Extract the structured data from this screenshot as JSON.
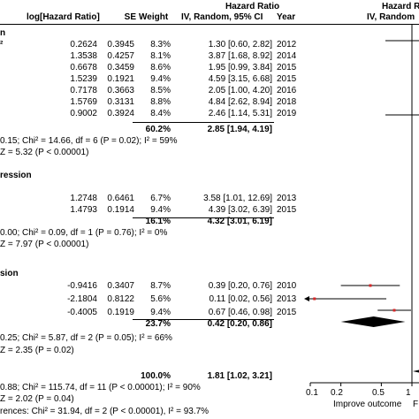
{
  "header": {
    "hr_top": "Hazard Ratio",
    "cols": [
      "log[Hazard Ratio]",
      "SE",
      "Weight",
      "IV, Random, 95% CI",
      "Year"
    ],
    "plot_top": "Hazard R",
    "plot_sub": "IV, Random"
  },
  "groups": [
    {
      "title": "n",
      "title2": "²",
      "rows": [
        {
          "log": "0.2624",
          "se": "0.3945",
          "w": "8.3%",
          "ci": "1.30 [0.60, 2.82]",
          "year": "2012"
        },
        {
          "log": "1.3538",
          "se": "0.4257",
          "w": "8.1%",
          "ci": "3.87 [1.68, 8.92]",
          "year": "2014"
        },
        {
          "log": "0.6678",
          "se": "0.3459",
          "w": "8.6%",
          "ci": "1.95 [0.99, 3.84]",
          "year": "2015"
        },
        {
          "log": "1.5239",
          "se": "0.1921",
          "w": "9.4%",
          "ci": "4.59 [3.15, 6.68]",
          "year": "2015"
        },
        {
          "log": "0.7178",
          "se": "0.3663",
          "w": "8.5%",
          "ci": "2.05 [1.00, 4.20]",
          "year": "2016"
        },
        {
          "log": "1.5769",
          "se": "0.3131",
          "w": "8.8%",
          "ci": "4.84 [2.62, 8.94]",
          "year": "2018"
        },
        {
          "log": "0.9002",
          "se": "0.3924",
          "w": "8.4%",
          "ci": "2.46 [1.14, 5.31]",
          "year": "2019"
        }
      ],
      "total_w": "60.2%",
      "total_ci": "2.85 [1.94, 4.19]",
      "het": "0.15; Chi² = 14.66, df = 6 (P = 0.02); I² = 59%",
      "z": "Z = 5.32 (P < 0.00001)"
    },
    {
      "title": "ression",
      "rows": [
        {
          "log": "1.2748",
          "se": "0.6461",
          "w": "6.7%",
          "ci": "3.58 [1.01, 12.69]",
          "year": "2013"
        },
        {
          "log": "1.4793",
          "se": "0.1914",
          "w": "9.4%",
          "ci": "4.39 [3.02, 6.39]",
          "year": "2015"
        }
      ],
      "total_w": "16.1%",
      "total_ci": "4.32 [3.01, 6.19]",
      "het": "0.00; Chi² = 0.09, df = 1 (P = 0.76); I² = 0%",
      "z": "Z = 7.97 (P < 0.00001)"
    },
    {
      "title": "sion",
      "rows": [
        {
          "log": "-0.9416",
          "se": "0.3407",
          "w": "8.7%",
          "ci": "0.39 [0.20, 0.76]",
          "year": "2010"
        },
        {
          "log": "-2.1804",
          "se": "0.8122",
          "w": "5.6%",
          "ci": "0.11 [0.02, 0.56]",
          "year": "2013"
        },
        {
          "log": "-0.4005",
          "se": "0.1919",
          "w": "9.4%",
          "ci": "0.67 [0.46, 0.98]",
          "year": "2015"
        }
      ],
      "total_w": "23.7%",
      "total_ci": "0.42 [0.20, 0.86]",
      "het": "0.25; Chi² = 5.87, df = 2 (P = 0.05); I² = 66%",
      "z": "Z = 2.35 (P = 0.02)"
    }
  ],
  "overall": {
    "w": "100.0%",
    "ci": "1.81 [1.02, 3.21]",
    "het": "0.88; Chi² = 115.74, df = 11 (P < 0.00001); I² = 90%",
    "z": "Z = 2.02 (P = 0.04)",
    "subgroup": "rences: Chi² = 31.94, df = 2 (P < 0.00001), I² = 93.7%"
  },
  "axis": {
    "ticks": [
      "0.1",
      "0.2",
      "0.5",
      "1"
    ],
    "left_label": "Improve outcome",
    "right_label": "F"
  },
  "chart_data": {
    "type": "forest",
    "x_scale": "log",
    "xlim": [
      0.1,
      10
    ],
    "null_value": 1,
    "visible_points": [
      {
        "hr": 0.39,
        "lo": 0.2,
        "hi": 0.76
      },
      {
        "hr": 0.11,
        "lo": 0.02,
        "hi": 0.56
      },
      {
        "hr": 0.67,
        "lo": 0.46,
        "hi": 0.98
      }
    ],
    "visible_diamonds": [
      {
        "hr": 0.42,
        "lo": 0.2,
        "hi": 0.86
      },
      {
        "hr": 1.81,
        "lo": 1.02,
        "hi": 3.21
      }
    ],
    "colors": {
      "point": "#d62728",
      "line": "#000000"
    }
  }
}
